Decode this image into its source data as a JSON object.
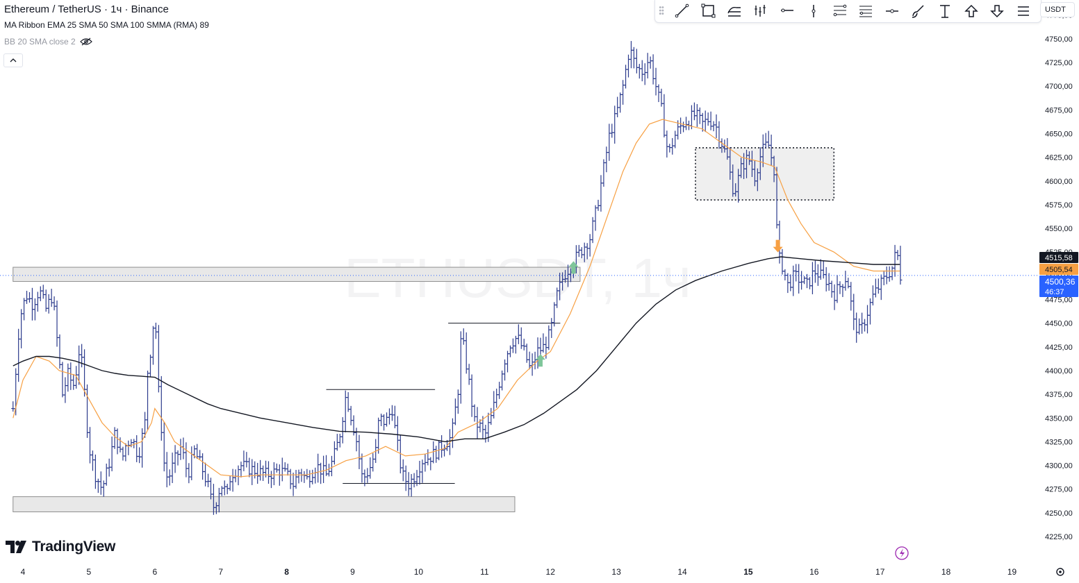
{
  "legend": {
    "symbol_line": "Ethereum / TetherUS · 1ч · Binance",
    "indicator1": "MA Ribbon EMA 25 SMA 50 SMA 100 SMMA (RMA) 89",
    "indicator2": "BB 20 SMA close 2"
  },
  "currency_selector": "USDT",
  "watermark": "ETHUSDT, 1ч",
  "logo_text": "TradingView",
  "toolbar_icons": [
    "grip-icon",
    "trend-line-icon",
    "rectangle-icon",
    "parallel-channel-icon",
    "bars-pattern-icon",
    "horizontal-ray-icon",
    "vertical-line-icon",
    "fib-retracement-icon",
    "fib-extension-icon",
    "horizontal-line-icon",
    "brush-icon",
    "long-position-icon",
    "arrow-up-icon",
    "arrow-down-icon",
    "menu-icon"
  ],
  "colors": {
    "candle": "#2b3a8c",
    "ema": "#f7a043",
    "sma": "#131722",
    "zone": "#e8e8e8",
    "price_label_last": "#131722",
    "price_label_ema": "#f7a043",
    "price_label_current": "#2962ff"
  },
  "chart_data": {
    "type": "candlestick",
    "symbol": "ETHUSDT",
    "interval": "1ч",
    "x_ticks": [
      "4",
      "5",
      "6",
      "7",
      "8",
      "9",
      "10",
      "11",
      "12",
      "13",
      "14",
      "15",
      "16",
      "17",
      "18",
      "19"
    ],
    "x_ticks_bold": [
      "8",
      "15"
    ],
    "y_ticks": [
      "4225,00",
      "4250,00",
      "4275,00",
      "4300,00",
      "4325,00",
      "4350,00",
      "4375,00",
      "4400,00",
      "4425,00",
      "4450,00",
      "4475,00",
      "4500,00",
      "4525,00",
      "4550,00",
      "4575,00",
      "4600,00",
      "4625,00",
      "4650,00",
      "4675,00",
      "4700,00",
      "4725,00",
      "4750,00",
      "4775,00"
    ],
    "ylim": [
      4214,
      4785
    ],
    "xlim": [
      3.85,
      19.45
    ],
    "price_labels": [
      {
        "text": "4515,58",
        "value": 4515.58,
        "kind": "last"
      },
      {
        "text": "4505,54",
        "value": 4505.54,
        "kind": "ema"
      },
      {
        "text": "4500,36",
        "value": 4500.36,
        "kind": "current"
      },
      {
        "text": "46:37",
        "kind": "countdown"
      }
    ],
    "current_price": 4500.36,
    "close_path": [
      [
        3.85,
        4360
      ],
      [
        3.95,
        4455
      ],
      [
        4.05,
        4480
      ],
      [
        4.15,
        4470
      ],
      [
        4.25,
        4485
      ],
      [
        4.35,
        4465
      ],
      [
        4.45,
        4480
      ],
      [
        4.5,
        4445
      ],
      [
        4.55,
        4410
      ],
      [
        4.6,
        4375
      ],
      [
        4.7,
        4400
      ],
      [
        4.75,
        4380
      ],
      [
        4.8,
        4395
      ],
      [
        4.85,
        4420
      ],
      [
        4.9,
        4405
      ],
      [
        5.0,
        4320
      ],
      [
        5.1,
        4290
      ],
      [
        5.2,
        4275
      ],
      [
        5.3,
        4300
      ],
      [
        5.4,
        4335
      ],
      [
        5.5,
        4305
      ],
      [
        5.55,
        4320
      ],
      [
        5.65,
        4330
      ],
      [
        5.75,
        4310
      ],
      [
        5.85,
        4345
      ],
      [
        5.9,
        4410
      ],
      [
        5.95,
        4425
      ],
      [
        6.0,
        4470
      ],
      [
        6.05,
        4385
      ],
      [
        6.15,
        4295
      ],
      [
        6.2,
        4285
      ],
      [
        6.3,
        4305
      ],
      [
        6.4,
        4320
      ],
      [
        6.5,
        4290
      ],
      [
        6.6,
        4315
      ],
      [
        6.7,
        4300
      ],
      [
        6.8,
        4280
      ],
      [
        6.85,
        4265
      ],
      [
        6.9,
        4255
      ],
      [
        7.0,
        4280
      ],
      [
        7.1,
        4270
      ],
      [
        7.15,
        4290
      ],
      [
        7.3,
        4300
      ],
      [
        7.5,
        4295
      ],
      [
        7.7,
        4290
      ],
      [
        7.9,
        4295
      ],
      [
        8.0,
        4290
      ],
      [
        8.1,
        4280
      ],
      [
        8.2,
        4295
      ],
      [
        8.3,
        4285
      ],
      [
        8.45,
        4300
      ],
      [
        8.6,
        4290
      ],
      [
        8.7,
        4305
      ],
      [
        8.8,
        4330
      ],
      [
        8.9,
        4375
      ],
      [
        8.95,
        4360
      ],
      [
        9.05,
        4330
      ],
      [
        9.15,
        4285
      ],
      [
        9.25,
        4295
      ],
      [
        9.35,
        4315
      ],
      [
        9.4,
        4350
      ],
      [
        9.5,
        4345
      ],
      [
        9.6,
        4360
      ],
      [
        9.65,
        4335
      ],
      [
        9.75,
        4290
      ],
      [
        9.85,
        4280
      ],
      [
        9.95,
        4290
      ],
      [
        10.05,
        4305
      ],
      [
        10.2,
        4310
      ],
      [
        10.35,
        4320
      ],
      [
        10.5,
        4330
      ],
      [
        10.6,
        4380
      ],
      [
        10.65,
        4440
      ],
      [
        10.75,
        4395
      ],
      [
        10.85,
        4345
      ],
      [
        10.95,
        4340
      ],
      [
        11.0,
        4330
      ],
      [
        11.1,
        4350
      ],
      [
        11.2,
        4380
      ],
      [
        11.3,
        4410
      ],
      [
        11.4,
        4430
      ],
      [
        11.5,
        4435
      ],
      [
        11.6,
        4420
      ],
      [
        11.7,
        4400
      ],
      [
        11.8,
        4420
      ],
      [
        11.9,
        4425
      ],
      [
        12.0,
        4440
      ],
      [
        12.1,
        4480
      ],
      [
        12.2,
        4500
      ],
      [
        12.3,
        4510
      ],
      [
        12.4,
        4520
      ],
      [
        12.5,
        4530
      ],
      [
        12.6,
        4540
      ],
      [
        12.7,
        4570
      ],
      [
        12.8,
        4610
      ],
      [
        12.9,
        4650
      ],
      [
        13.0,
        4670
      ],
      [
        13.1,
        4700
      ],
      [
        13.2,
        4740
      ],
      [
        13.3,
        4720
      ],
      [
        13.4,
        4715
      ],
      [
        13.5,
        4730
      ],
      [
        13.6,
        4700
      ],
      [
        13.7,
        4670
      ],
      [
        13.75,
        4640
      ],
      [
        13.8,
        4630
      ],
      [
        13.9,
        4650
      ],
      [
        14.0,
        4660
      ],
      [
        14.1,
        4665
      ],
      [
        14.2,
        4670
      ],
      [
        14.3,
        4660
      ],
      [
        14.4,
        4665
      ],
      [
        14.5,
        4660
      ],
      [
        14.6,
        4640
      ],
      [
        14.7,
        4620
      ],
      [
        14.75,
        4595
      ],
      [
        14.8,
        4590
      ],
      [
        14.9,
        4615
      ],
      [
        15.0,
        4625
      ],
      [
        15.1,
        4605
      ],
      [
        15.2,
        4630
      ],
      [
        15.3,
        4640
      ],
      [
        15.4,
        4610
      ],
      [
        15.45,
        4520
      ],
      [
        15.5,
        4515
      ],
      [
        15.6,
        4490
      ],
      [
        15.7,
        4500
      ],
      [
        15.8,
        4495
      ],
      [
        15.9,
        4490
      ],
      [
        16.0,
        4505
      ],
      [
        16.1,
        4500
      ],
      [
        16.2,
        4495
      ],
      [
        16.3,
        4480
      ],
      [
        16.4,
        4490
      ],
      [
        16.5,
        4500
      ],
      [
        16.6,
        4450
      ],
      [
        16.7,
        4440
      ],
      [
        16.8,
        4460
      ],
      [
        16.9,
        4480
      ],
      [
        17.0,
        4490
      ],
      [
        17.1,
        4500
      ],
      [
        17.2,
        4510
      ],
      [
        17.25,
        4530
      ],
      [
        17.3,
        4500
      ]
    ],
    "ema_25": [
      [
        3.85,
        4350
      ],
      [
        4.0,
        4390
      ],
      [
        4.2,
        4415
      ],
      [
        4.4,
        4410
      ],
      [
        4.55,
        4400
      ],
      [
        4.8,
        4395
      ],
      [
        5.0,
        4370
      ],
      [
        5.2,
        4345
      ],
      [
        5.4,
        4330
      ],
      [
        5.6,
        4320
      ],
      [
        5.8,
        4325
      ],
      [
        5.95,
        4345
      ],
      [
        6.0,
        4360
      ],
      [
        6.15,
        4345
      ],
      [
        6.3,
        4325
      ],
      [
        6.5,
        4315
      ],
      [
        6.8,
        4300
      ],
      [
        7.0,
        4290
      ],
      [
        7.3,
        4288
      ],
      [
        7.6,
        4290
      ],
      [
        8.0,
        4290
      ],
      [
        8.3,
        4290
      ],
      [
        8.6,
        4295
      ],
      [
        8.9,
        4305
      ],
      [
        9.2,
        4310
      ],
      [
        9.5,
        4320
      ],
      [
        9.8,
        4310
      ],
      [
        10.1,
        4312
      ],
      [
        10.4,
        4318
      ],
      [
        10.6,
        4335
      ],
      [
        10.9,
        4345
      ],
      [
        11.2,
        4360
      ],
      [
        11.5,
        4390
      ],
      [
        11.8,
        4410
      ],
      [
        12.0,
        4420
      ],
      [
        12.3,
        4460
      ],
      [
        12.6,
        4510
      ],
      [
        12.9,
        4570
      ],
      [
        13.1,
        4610
      ],
      [
        13.3,
        4640
      ],
      [
        13.5,
        4660
      ],
      [
        13.7,
        4665
      ],
      [
        14.0,
        4660
      ],
      [
        14.3,
        4655
      ],
      [
        14.6,
        4640
      ],
      [
        14.9,
        4625
      ],
      [
        15.2,
        4620
      ],
      [
        15.4,
        4615
      ],
      [
        15.6,
        4580
      ],
      [
        15.8,
        4555
      ],
      [
        16.0,
        4535
      ],
      [
        16.3,
        4525
      ],
      [
        16.6,
        4510
      ],
      [
        16.9,
        4505
      ],
      [
        17.2,
        4505
      ],
      [
        17.3,
        4505
      ]
    ],
    "sma_100": [
      [
        3.85,
        4405
      ],
      [
        4.0,
        4410
      ],
      [
        4.2,
        4415
      ],
      [
        4.4,
        4415
      ],
      [
        4.6,
        4413
      ],
      [
        4.8,
        4410
      ],
      [
        5.0,
        4405
      ],
      [
        5.2,
        4400
      ],
      [
        5.4,
        4397
      ],
      [
        5.6,
        4395
      ],
      [
        5.8,
        4394
      ],
      [
        6.0,
        4393
      ],
      [
        6.2,
        4385
      ],
      [
        6.5,
        4375
      ],
      [
        6.8,
        4365
      ],
      [
        7.0,
        4360
      ],
      [
        7.3,
        4355
      ],
      [
        7.6,
        4350
      ],
      [
        8.0,
        4345
      ],
      [
        8.4,
        4340
      ],
      [
        8.8,
        4336
      ],
      [
        9.2,
        4335
      ],
      [
        9.6,
        4333
      ],
      [
        10.0,
        4330
      ],
      [
        10.4,
        4325
      ],
      [
        10.7,
        4328
      ],
      [
        11.0,
        4328
      ],
      [
        11.3,
        4335
      ],
      [
        11.6,
        4343
      ],
      [
        11.9,
        4355
      ],
      [
        12.1,
        4365
      ],
      [
        12.4,
        4380
      ],
      [
        12.7,
        4400
      ],
      [
        13.0,
        4425
      ],
      [
        13.3,
        4450
      ],
      [
        13.6,
        4470
      ],
      [
        13.9,
        4485
      ],
      [
        14.2,
        4495
      ],
      [
        14.6,
        4505
      ],
      [
        15.0,
        4513
      ],
      [
        15.3,
        4518
      ],
      [
        15.5,
        4520
      ],
      [
        15.8,
        4518
      ],
      [
        16.1,
        4516
      ],
      [
        16.5,
        4514
      ],
      [
        16.9,
        4512
      ],
      [
        17.3,
        4512
      ]
    ],
    "zones": [
      {
        "x1": 3.85,
        "x2": 12.45,
        "y1": 4494,
        "y2": 4509
      },
      {
        "x1": 3.85,
        "x2": 11.46,
        "y1": 4251,
        "y2": 4267
      },
      {
        "x1": 14.2,
        "x2": 16.3,
        "y1": 4580,
        "y2": 4635
      }
    ],
    "levels": [
      {
        "x1": 10.45,
        "x2": 12.15,
        "y": 4450
      },
      {
        "x1": 8.6,
        "x2": 10.25,
        "y": 4380
      },
      {
        "x1": 8.85,
        "x2": 10.55,
        "y": 4281
      }
    ],
    "markers": [
      {
        "x": 12.35,
        "y": 4508,
        "dir": "up",
        "color": "#7fc69a"
      },
      {
        "x": 11.85,
        "y": 4410,
        "dir": "up",
        "color": "#7fc69a"
      },
      {
        "x": 15.45,
        "y": 4532,
        "dir": "down",
        "color": "#f7a043"
      }
    ]
  }
}
